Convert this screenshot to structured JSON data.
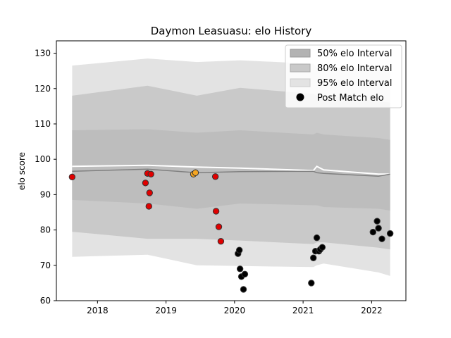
{
  "chart_data": {
    "type": "line",
    "title": "Daymon Leasuasu: elo History",
    "xlabel": "",
    "ylabel": "elo score",
    "xlim": [
      2017.4,
      2022.5
    ],
    "ylim": [
      60,
      133.5
    ],
    "x_ticks": [
      "2018",
      "2019",
      "2020",
      "2021",
      "2022"
    ],
    "x_tick_values": [
      2018,
      2019,
      2020,
      2021,
      2022
    ],
    "y_ticks": [
      "60",
      "70",
      "80",
      "90",
      "100",
      "110",
      "120",
      "130"
    ],
    "y_tick_values": [
      60,
      70,
      80,
      90,
      100,
      110,
      120,
      130
    ],
    "legend_position": "top-right",
    "legend": [
      {
        "label": "50% elo Interval",
        "swatch": "#b3b3b3"
      },
      {
        "label": "80% elo Interval",
        "swatch": "#c9c9c9"
      },
      {
        "label": "95% elo Interval",
        "swatch": "#e3e3e3"
      },
      {
        "label": "Post Match elo",
        "swatch": "#000000"
      }
    ],
    "x_band": [
      2017.63,
      2018.73,
      2019.45,
      2020.08,
      2021.15,
      2021.2,
      2021.3,
      2022.1,
      2022.27
    ],
    "band_95_upper": [
      126.5,
      128.5,
      127.5,
      128.0,
      127.0,
      126.0,
      126.0,
      125.5,
      125.0
    ],
    "band_95_lower": [
      72.4,
      73.0,
      70.0,
      69.8,
      69.5,
      70.0,
      70.5,
      68.0,
      67.0
    ],
    "band_80_upper": [
      118.0,
      120.8,
      118.0,
      120.2,
      118.5,
      118.0,
      118.0,
      116.5,
      116.0
    ],
    "band_80_lower": [
      79.5,
      77.5,
      77.5,
      77.0,
      76.0,
      76.5,
      76.5,
      75.0,
      74.5
    ],
    "band_50_upper": [
      108.2,
      108.5,
      107.5,
      108.2,
      107.0,
      107.5,
      107.0,
      106.0,
      105.5
    ],
    "band_50_lower": [
      88.5,
      87.5,
      86.0,
      87.5,
      87.0,
      87.0,
      86.5,
      86.0,
      85.5
    ],
    "series": [
      {
        "name": "",
        "color": "#ffffff",
        "x": [
          2017.63,
          2018.73,
          2019.45,
          2020.08,
          2021.15,
          2021.2,
          2021.3,
          2022.1,
          2022.27
        ],
        "values": [
          98.0,
          98.3,
          97.8,
          97.5,
          96.8,
          98.0,
          97.0,
          95.8,
          95.8
        ]
      },
      {
        "name": "",
        "color": "#808080",
        "x": [
          2017.63,
          2018.73,
          2019.45,
          2020.08,
          2021.15,
          2021.2,
          2021.3,
          2022.1,
          2022.27
        ],
        "values": [
          96.6,
          97.2,
          96.2,
          96.5,
          96.6,
          96.2,
          96.0,
          95.2,
          95.8
        ]
      }
    ],
    "points": [
      {
        "x": 2017.63,
        "y": 95.0,
        "color": "#e00000"
      },
      {
        "x": 2018.7,
        "y": 93.3,
        "color": "#e00000"
      },
      {
        "x": 2018.73,
        "y": 96.0,
        "color": "#e00000"
      },
      {
        "x": 2018.78,
        "y": 95.8,
        "color": "#e00000"
      },
      {
        "x": 2018.76,
        "y": 90.5,
        "color": "#e00000"
      },
      {
        "x": 2018.75,
        "y": 86.7,
        "color": "#e00000"
      },
      {
        "x": 2019.4,
        "y": 95.8,
        "color": "#f5a623"
      },
      {
        "x": 2019.43,
        "y": 96.2,
        "color": "#f5a623"
      },
      {
        "x": 2019.72,
        "y": 95.1,
        "color": "#e00000"
      },
      {
        "x": 2019.73,
        "y": 85.3,
        "color": "#e00000"
      },
      {
        "x": 2019.77,
        "y": 80.9,
        "color": "#e00000"
      },
      {
        "x": 2019.8,
        "y": 76.8,
        "color": "#e00000"
      },
      {
        "x": 2020.05,
        "y": 73.3,
        "color": "#000000"
      },
      {
        "x": 2020.07,
        "y": 74.3,
        "color": "#000000"
      },
      {
        "x": 2020.08,
        "y": 69.0,
        "color": "#000000"
      },
      {
        "x": 2020.1,
        "y": 66.8,
        "color": "#000000"
      },
      {
        "x": 2020.15,
        "y": 67.5,
        "color": "#000000"
      },
      {
        "x": 2020.13,
        "y": 63.2,
        "color": "#000000"
      },
      {
        "x": 2021.12,
        "y": 65.0,
        "color": "#000000"
      },
      {
        "x": 2021.15,
        "y": 72.1,
        "color": "#000000"
      },
      {
        "x": 2021.18,
        "y": 74.0,
        "color": "#000000"
      },
      {
        "x": 2021.2,
        "y": 77.8,
        "color": "#000000"
      },
      {
        "x": 2021.23,
        "y": 74.0,
        "color": "#000000"
      },
      {
        "x": 2021.25,
        "y": 74.5,
        "color": "#000000"
      },
      {
        "x": 2021.28,
        "y": 75.1,
        "color": "#000000"
      },
      {
        "x": 2022.02,
        "y": 79.4,
        "color": "#000000"
      },
      {
        "x": 2022.08,
        "y": 82.5,
        "color": "#000000"
      },
      {
        "x": 2022.1,
        "y": 80.5,
        "color": "#000000"
      },
      {
        "x": 2022.15,
        "y": 77.5,
        "color": "#000000"
      },
      {
        "x": 2022.27,
        "y": 79.0,
        "color": "#000000"
      }
    ]
  }
}
